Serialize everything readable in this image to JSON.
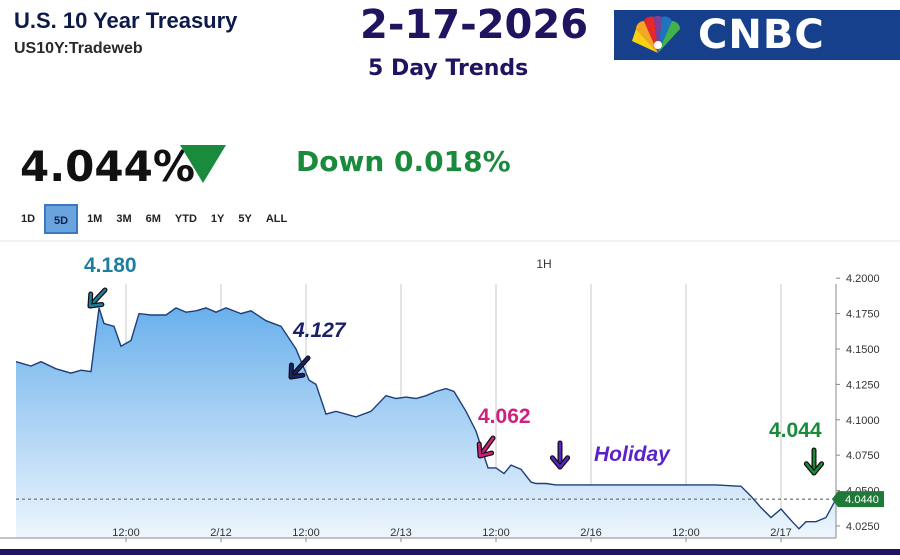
{
  "header": {
    "title": "U.S. 10 Year Treasury",
    "symbol": "US10Y:Tradeweb",
    "date": "2-17-2026",
    "subtitle": "5 Day Trends",
    "logo_text": "CNBC"
  },
  "quote": {
    "price": "4.044%",
    "direction": "down",
    "change": "Down 0.018%"
  },
  "ranges": [
    {
      "label": "1D",
      "active": false
    },
    {
      "label": "5D",
      "active": true
    },
    {
      "label": "1M",
      "active": false
    },
    {
      "label": "3M",
      "active": false
    },
    {
      "label": "6M",
      "active": false
    },
    {
      "label": "YTD",
      "active": false
    },
    {
      "label": "1Y",
      "active": false
    },
    {
      "label": "5Y",
      "active": false
    },
    {
      "label": "ALL",
      "active": false
    }
  ],
  "colors": {
    "line": "#1d3f7a",
    "fill_top": "#6ab0ec",
    "fill_bottom": "#eef6fd",
    "down_green": "#1a8a3c",
    "annot_teal": "#1f7ea0",
    "annot_navy": "#1a1f6e",
    "annot_pink": "#d0207e",
    "annot_purple": "#5b22c9",
    "annot_green": "#1a8a3c"
  },
  "chart_data": {
    "type": "area",
    "interval_label": "1H",
    "x_tick_labels": [
      "12:00",
      "2/12",
      "12:00",
      "2/13",
      "12:00",
      "2/16",
      "12:00",
      "2/17"
    ],
    "y_tick_labels": [
      "4.2000",
      "4.1750",
      "4.1500",
      "4.1250",
      "4.1000",
      "4.0750",
      "4.0500",
      "4.0250"
    ],
    "ylim": [
      4.0165,
      4.2185
    ],
    "xlim": [
      0,
      82
    ],
    "x_ticks": [
      11,
      20.5,
      29,
      38.5,
      48,
      57.5,
      67,
      76.5
    ],
    "last_value_label": "4.0440",
    "last_value": 4.044,
    "grid": true,
    "series": [
      {
        "values": [
          [
            0,
            4.141
          ],
          [
            1.5,
            4.138
          ],
          [
            2.5,
            4.141
          ],
          [
            4,
            4.136
          ],
          [
            5.5,
            4.133
          ],
          [
            6.5,
            4.135
          ],
          [
            7.5,
            4.134
          ],
          [
            8.3,
            4.179
          ],
          [
            8.8,
            4.168
          ],
          [
            9.8,
            4.166
          ],
          [
            10.5,
            4.152
          ],
          [
            11.5,
            4.156
          ],
          [
            12.3,
            4.175
          ],
          [
            13.5,
            4.174
          ],
          [
            15,
            4.174
          ],
          [
            16,
            4.179
          ],
          [
            17,
            4.176
          ],
          [
            18,
            4.177
          ],
          [
            19,
            4.179
          ],
          [
            20,
            4.176
          ],
          [
            21,
            4.179
          ],
          [
            22.5,
            4.175
          ],
          [
            23.5,
            4.177
          ],
          [
            25,
            4.17
          ],
          [
            26.5,
            4.166
          ],
          [
            28,
            4.15
          ],
          [
            29.3,
            4.128
          ],
          [
            30,
            4.125
          ],
          [
            31,
            4.104
          ],
          [
            32,
            4.106
          ],
          [
            34,
            4.102
          ],
          [
            35.5,
            4.106
          ],
          [
            37,
            4.117
          ],
          [
            38,
            4.115
          ],
          [
            39,
            4.116
          ],
          [
            40,
            4.115
          ],
          [
            41,
            4.117
          ],
          [
            42,
            4.12
          ],
          [
            43,
            4.122
          ],
          [
            43.8,
            4.12
          ],
          [
            45,
            4.106
          ],
          [
            46,
            4.092
          ],
          [
            47.2,
            4.066
          ],
          [
            48,
            4.066
          ],
          [
            48.8,
            4.062
          ],
          [
            49.5,
            4.068
          ],
          [
            50.5,
            4.065
          ],
          [
            51.5,
            4.056
          ],
          [
            52,
            4.055
          ],
          [
            53,
            4.055
          ],
          [
            54,
            4.054
          ],
          [
            58,
            4.054
          ],
          [
            62,
            4.054
          ],
          [
            66,
            4.054
          ],
          [
            70,
            4.054
          ],
          [
            72.5,
            4.053
          ],
          [
            73.5,
            4.046
          ],
          [
            74.5,
            4.038
          ],
          [
            75.5,
            4.031
          ],
          [
            76.5,
            4.037
          ],
          [
            77.5,
            4.029
          ],
          [
            78.3,
            4.023
          ],
          [
            79,
            4.028
          ],
          [
            80,
            4.028
          ],
          [
            81,
            4.031
          ],
          [
            82,
            4.044
          ]
        ]
      }
    ],
    "annotations": [
      {
        "text": "4.180",
        "color": "#1f7ea0",
        "style": "normal"
      },
      {
        "text": "4.127",
        "color": "#1a1f6e",
        "style": "italic"
      },
      {
        "text": "4.062",
        "color": "#d0207e",
        "style": "normal"
      },
      {
        "text": "Holiday",
        "color": "#5b22c9",
        "style": "italic"
      },
      {
        "text": "4.044",
        "color": "#1a8a3c",
        "style": "normal"
      }
    ]
  }
}
